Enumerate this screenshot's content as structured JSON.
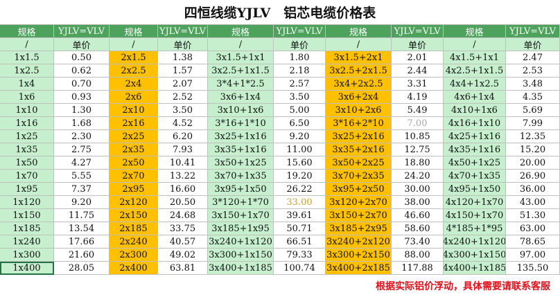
{
  "title": "四恒线缆YJLV　铝芯电缆价格表",
  "header": [
    "规格",
    "YJLV=VLV",
    "规格",
    "YJLV=VLV",
    "规格",
    "YJLV=VLV",
    "规格",
    "YJLV=VLV",
    "规格",
    "YJLV=VLV"
  ],
  "subheader": [
    "/",
    "单价",
    "/",
    "单价",
    "/",
    "单价",
    "/",
    "单价",
    "/",
    "单价"
  ],
  "rows": [
    [
      "1x1.5",
      "0.50",
      "2x1.5",
      "1.38",
      "3x1.5+1x1",
      "1.80",
      "3x1.5+2x1",
      "2.01",
      "4x1.5+1x1",
      "2.47"
    ],
    [
      "1x2.5",
      "0.62",
      "2x2.5",
      "1.57",
      "3x2.5+1x1.5",
      "2.18",
      "3x2.5+2x1.5",
      "2.44",
      "4x2.5+1x1.5",
      "2.53"
    ],
    [
      "1x4",
      "0.70",
      "2x4",
      "2.07",
      "3*4+1*2.5",
      "2.57",
      "3x4+2x2.5",
      "3.31",
      "4x4+1x2.5",
      "3.48"
    ],
    [
      "1x6",
      "0.93",
      "2x6",
      "2.52",
      "3x6+1x4",
      "3.50",
      "3x6+2x4",
      "4.19",
      "4x6+1x4",
      "4.35"
    ],
    [
      "1x10",
      "1.30",
      "2x10",
      "3.50",
      "3x10+1x6",
      "5.00",
      "3x10+2x6",
      "5.49",
      "4x10+1x6",
      "5.69"
    ],
    [
      "1x16",
      "1.68",
      "2x16",
      "4.52",
      "3*16+1*10",
      "6.50",
      "3*16+2*10",
      "7.00",
      "4x16+1x10",
      "7.99"
    ],
    [
      "1x25",
      "2.30",
      "2x25",
      "6.20",
      "3x25+1x16",
      "9.20",
      "3x25+2x16",
      "10.85",
      "4x25+1x16",
      "12.35"
    ],
    [
      "1x35",
      "2.75",
      "2x35",
      "7.93",
      "3x35+1x16",
      "11.00",
      "3x35+2x16",
      "12.75",
      "4x35+1x16",
      "15.20"
    ],
    [
      "1x50",
      "4.27",
      "2x50",
      "10.41",
      "3x50+1x25",
      "15.60",
      "3x50+2x25",
      "18.80",
      "4x50+1x25",
      "20.00"
    ],
    [
      "1x70",
      "5.55",
      "2x70",
      "13.22",
      "3x70+1x35",
      "19.20",
      "3x70+2x35",
      "24.20",
      "4x70+1x35",
      "26.90"
    ],
    [
      "1x95",
      "7.37",
      "2x95",
      "16.60",
      "3x95+1x50",
      "26.22",
      "3x95+2x50",
      "30.00",
      "4x95+1x50",
      "36.00"
    ],
    [
      "1x120",
      "9.20",
      "2x120",
      "20.50",
      "3*120+1*70",
      "33.00",
      "3x120+2x70",
      "38.00",
      "4x120+1x70",
      "43.00"
    ],
    [
      "1x150",
      "11.75",
      "2x150",
      "24.68",
      "3x150+1x70",
      "39.61",
      "3x150+2x70",
      "46.60",
      "4x150+1x70",
      "51.30"
    ],
    [
      "1x185",
      "13.54",
      "2x185",
      "33.75",
      "3x185+1x95",
      "50.71",
      "3x185+2x95",
      "58.60",
      "4*185+1*95",
      "63.00"
    ],
    [
      "1x240",
      "17.66",
      "2x240",
      "40.57",
      "3x240+1x120",
      "66.51",
      "3x240+2x120",
      "73.40",
      "4x240+1x120",
      "78.65"
    ],
    [
      "1x300",
      "21.60",
      "2x300",
      "49.02",
      "3x300+1x150",
      "79.33",
      "3x300+2x150",
      "88.00",
      "4x300+1x150",
      "97.00"
    ],
    [
      "1x400",
      "28.05",
      "2x400",
      "63.81",
      "3x400+1x185",
      "100.74",
      "3x400+2x185",
      "117.88",
      "4x400+1x185",
      "135.50"
    ]
  ],
  "note": "根据实际铝价浮动，具体需要请联系客服"
}
